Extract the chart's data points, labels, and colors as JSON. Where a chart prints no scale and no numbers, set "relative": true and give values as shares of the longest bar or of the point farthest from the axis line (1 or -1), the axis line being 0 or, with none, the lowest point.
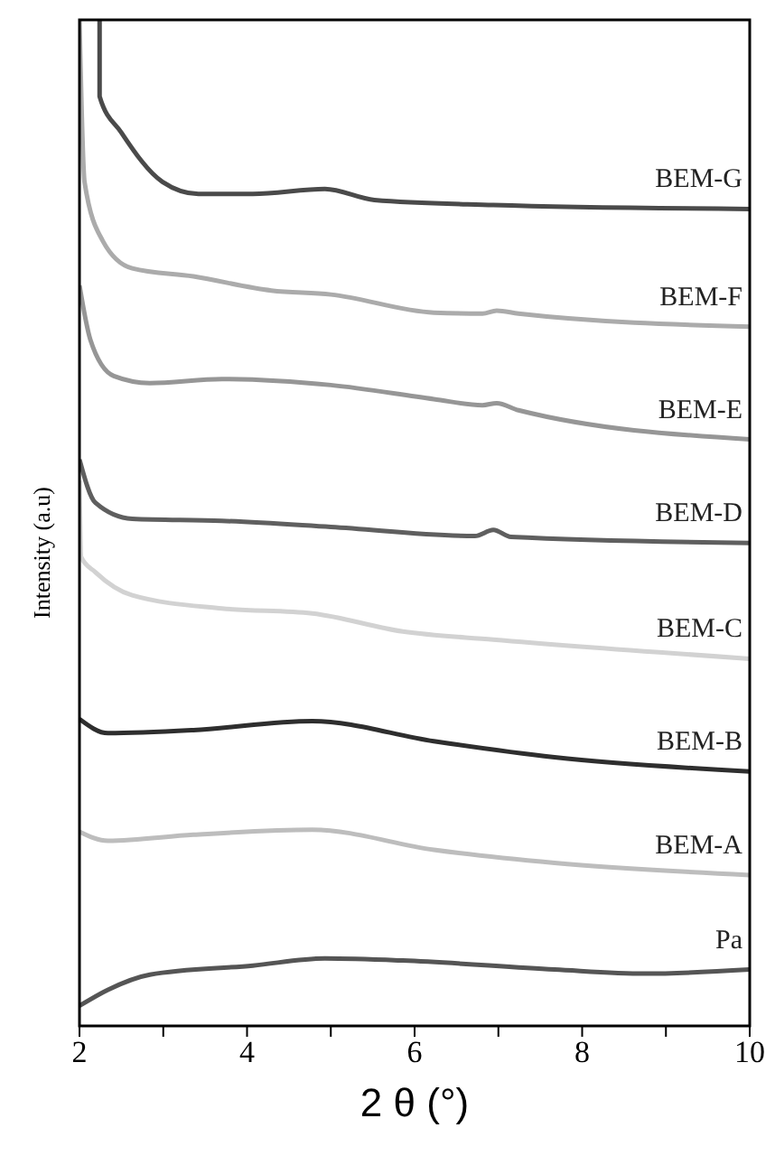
{
  "chart_data": {
    "type": "line",
    "relative": true,
    "xlabel": "2 θ (°)",
    "ylabel": "Intensity (a.u)",
    "xlim": [
      2,
      10
    ],
    "xticks": [
      2,
      {
        "value": 3,
        "label": null
      },
      4,
      {
        "value": 5,
        "label": null
      },
      6,
      {
        "value": 7,
        "label": null
      },
      8,
      {
        "value": 9,
        "label": null
      },
      10
    ],
    "grid": false,
    "legend": false,
    "marker": "none",
    "line_style": "solid",
    "series": [
      {
        "name": "BEM-G",
        "color": "#4a4a4a",
        "x": [
          2.24,
          2.24,
          2.5,
          2.99,
          3.42,
          4.07,
          4.93,
          5.52,
          6.94,
          10
        ],
        "values": [
          1.0,
          0.924,
          0.888,
          0.839,
          0.827,
          0.827,
          0.832,
          0.821,
          0.816,
          0.812
        ]
      },
      {
        "name": "BEM-F",
        "color": "#ababab",
        "x": [
          2.0,
          2.06,
          2.28,
          2.63,
          3.36,
          4.29,
          5.0,
          6.23,
          6.81,
          6.98,
          7.24,
          10
        ],
        "values": [
          1.0,
          0.839,
          0.78,
          0.753,
          0.745,
          0.731,
          0.727,
          0.709,
          0.708,
          0.711,
          0.708,
          0.695
        ]
      },
      {
        "name": "BEM-E",
        "color": "#969696",
        "x": [
          2.0,
          2.13,
          2.41,
          2.84,
          3.7,
          5.0,
          6.23,
          6.81,
          6.98,
          7.24,
          10
        ],
        "values": [
          0.736,
          0.682,
          0.646,
          0.639,
          0.643,
          0.637,
          0.623,
          0.617,
          0.619,
          0.612,
          0.583
        ]
      },
      {
        "name": "BEM-D",
        "color": "#5f5f5f",
        "x": [
          2.0,
          2.19,
          2.63,
          3.7,
          5.0,
          6.72,
          6.94,
          7.15,
          10
        ],
        "values": [
          0.563,
          0.52,
          0.504,
          0.502,
          0.496,
          0.487,
          0.493,
          0.486,
          0.48
        ]
      },
      {
        "name": "BEM-C",
        "color": "#d2d2d2",
        "x": [
          2.0,
          2.02,
          2.19,
          2.63,
          3.7,
          4.78,
          5.86,
          6.94,
          10
        ],
        "values": [
          0.542,
          0.466,
          0.451,
          0.428,
          0.415,
          0.41,
          0.392,
          0.384,
          0.365
        ]
      },
      {
        "name": "BEM-B",
        "color": "#2e2e2e",
        "x": [
          2.0,
          2.34,
          3.36,
          4.78,
          6.23,
          7.67,
          10
        ],
        "values": [
          0.305,
          0.291,
          0.294,
          0.303,
          0.283,
          0.267,
          0.253
        ]
      },
      {
        "name": "BEM-A",
        "color": "#bdbdbd",
        "x": [
          2.0,
          2.34,
          3.36,
          4.78,
          6.23,
          7.67,
          10
        ],
        "values": [
          0.193,
          0.184,
          0.19,
          0.195,
          0.175,
          0.162,
          0.15
        ]
      },
      {
        "name": "Pa",
        "color": "#555555",
        "x": [
          2.0,
          2.34,
          2.84,
          4.07,
          4.93,
          5.86,
          7.67,
          8.75,
          10
        ],
        "values": [
          0.02,
          0.036,
          0.051,
          0.06,
          0.067,
          0.065,
          0.056,
          0.052,
          0.056
        ]
      }
    ]
  }
}
